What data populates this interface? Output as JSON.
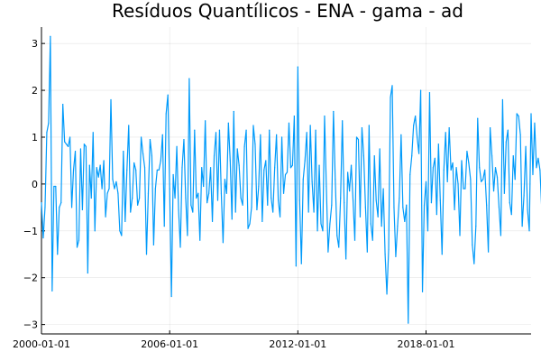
{
  "chart_data": {
    "type": "line",
    "title": "Resíduos Quantílicos - ENA - gama - ad",
    "xlabel": "",
    "ylabel": "",
    "x_start": "2000-01-01",
    "x_frequency": "monthly",
    "x_ticks": [
      "2000-01-01",
      "2006-01-01",
      "2012-01-01",
      "2018-01-01"
    ],
    "xlim": [
      "2000-01-01",
      "2022-12-01"
    ],
    "y_ticks": [
      -3,
      -2,
      -1,
      0,
      1,
      2,
      3
    ],
    "ylim": [
      -3.2,
      3.35
    ],
    "grid": true,
    "legend": "none",
    "series": [
      {
        "color": "#009AFA",
        "values": [
          -0.4,
          -1.15,
          -0.5,
          1.1,
          1.3,
          3.15,
          -2.28,
          -0.05,
          -0.05,
          -1.5,
          -0.5,
          -0.4,
          1.7,
          0.9,
          0.85,
          0.8,
          1.0,
          -0.5,
          0.3,
          0.7,
          -1.35,
          -1.2,
          0.75,
          -0.55,
          0.85,
          0.8,
          -1.9,
          0.4,
          -0.3,
          1.1,
          -1.0,
          0.35,
          0.15,
          0.4,
          -0.1,
          0.5,
          -0.7,
          -0.2,
          -0.1,
          1.8,
          0.1,
          -0.1,
          0.05,
          -0.2,
          -1.0,
          -1.1,
          0.7,
          -0.8,
          0.3,
          1.25,
          -0.6,
          -0.3,
          0.45,
          0.3,
          -0.45,
          -0.3,
          1.0,
          0.65,
          0.35,
          -1.5,
          -0.2,
          0.95,
          0.6,
          -1.3,
          -0.1,
          0.3,
          0.3,
          0.5,
          1.05,
          -0.9,
          1.5,
          1.9,
          -0.1,
          -2.4,
          0.2,
          -0.3,
          0.8,
          -0.55,
          -1.35,
          0.35,
          0.95,
          -0.3,
          -1.1,
          2.25,
          -0.45,
          -0.6,
          1.15,
          -0.3,
          -0.2,
          -1.2,
          0.35,
          -0.05,
          1.35,
          -0.4,
          -0.2,
          0.35,
          -0.8,
          0.6,
          1.1,
          -0.35,
          1.15,
          -0.2,
          -1.25,
          0.1,
          -0.2,
          1.3,
          0.5,
          -0.75,
          1.55,
          -0.6,
          0.75,
          0.4,
          -0.3,
          -0.45,
          0.8,
          1.15,
          -0.95,
          -0.85,
          -0.5,
          1.25,
          0.85,
          -0.55,
          -0.05,
          1.05,
          -0.8,
          0.3,
          0.5,
          -0.45,
          1.15,
          -0.3,
          -0.6,
          0.35,
          1.05,
          -0.35,
          -0.7,
          1.0,
          -0.2,
          0.2,
          0.25,
          1.3,
          0.35,
          0.4,
          1.45,
          -1.75,
          2.5,
          -0.35,
          -1.7,
          0.1,
          0.5,
          1.1,
          -0.6,
          1.25,
          0.05,
          -0.6,
          1.15,
          -1.0,
          0.4,
          -0.85,
          -1.0,
          1.45,
          -0.05,
          -1.45,
          -0.85,
          -0.45,
          1.55,
          0.1,
          -1.1,
          -1.35,
          -0.3,
          1.35,
          -0.4,
          -1.6,
          0.25,
          -0.15,
          0.4,
          -0.35,
          -1.2,
          1.0,
          0.95,
          -0.7,
          1.2,
          0.6,
          -0.5,
          -1.45,
          1.25,
          -0.85,
          -1.2,
          0.6,
          -0.35,
          -0.7,
          0.75,
          -0.9,
          -0.1,
          -1.5,
          -2.35,
          -1.4,
          1.85,
          2.1,
          -0.5,
          -1.55,
          -0.9,
          -0.3,
          1.05,
          -0.5,
          -0.8,
          -0.45,
          -2.97,
          0.2,
          0.6,
          1.25,
          1.45,
          1.0,
          0.65,
          2.0,
          -2.3,
          -0.45,
          0.05,
          -1.0,
          1.95,
          -0.4,
          0.35,
          0.55,
          -0.65,
          0.85,
          -0.35,
          -1.5,
          0.3,
          1.1,
          0.05,
          1.2,
          0.3,
          0.45,
          -0.55,
          0.35,
          0.0,
          -1.1,
          0.5,
          -0.1,
          -0.1,
          0.7,
          0.45,
          0.1,
          -1.3,
          -1.7,
          -0.9,
          1.4,
          0.35,
          0.05,
          0.1,
          0.3,
          -0.45,
          -1.45,
          1.2,
          0.6,
          -0.15,
          0.35,
          0.15,
          -0.5,
          -1.1,
          1.8,
          -0.2,
          0.9,
          1.15,
          -0.4,
          -0.65,
          0.6,
          0.1,
          1.5,
          1.45,
          1.05,
          -0.9,
          -0.25,
          0.8,
          -0.55,
          -1.0,
          1.5,
          0.2,
          1.3,
          0.35,
          0.55,
          0.3,
          -0.55,
          -0.85,
          -0.7,
          -1.05,
          -0.85,
          -0.75,
          0.05,
          1.0,
          -0.95,
          0.4,
          1.85,
          0.0,
          -0.45,
          -0.95,
          -1.1,
          -0.3,
          0.1,
          -1.2,
          -1.25,
          -0.7,
          0.45,
          0.5,
          0.35,
          0.1,
          -0.7,
          -0.2,
          -0.1,
          -0.45,
          0.0,
          2.35,
          0.3,
          0.1,
          1.4,
          -0.5,
          -1.55,
          -0.7,
          -0.85,
          -0.05,
          -0.85,
          0.65
        ]
      }
    ]
  }
}
